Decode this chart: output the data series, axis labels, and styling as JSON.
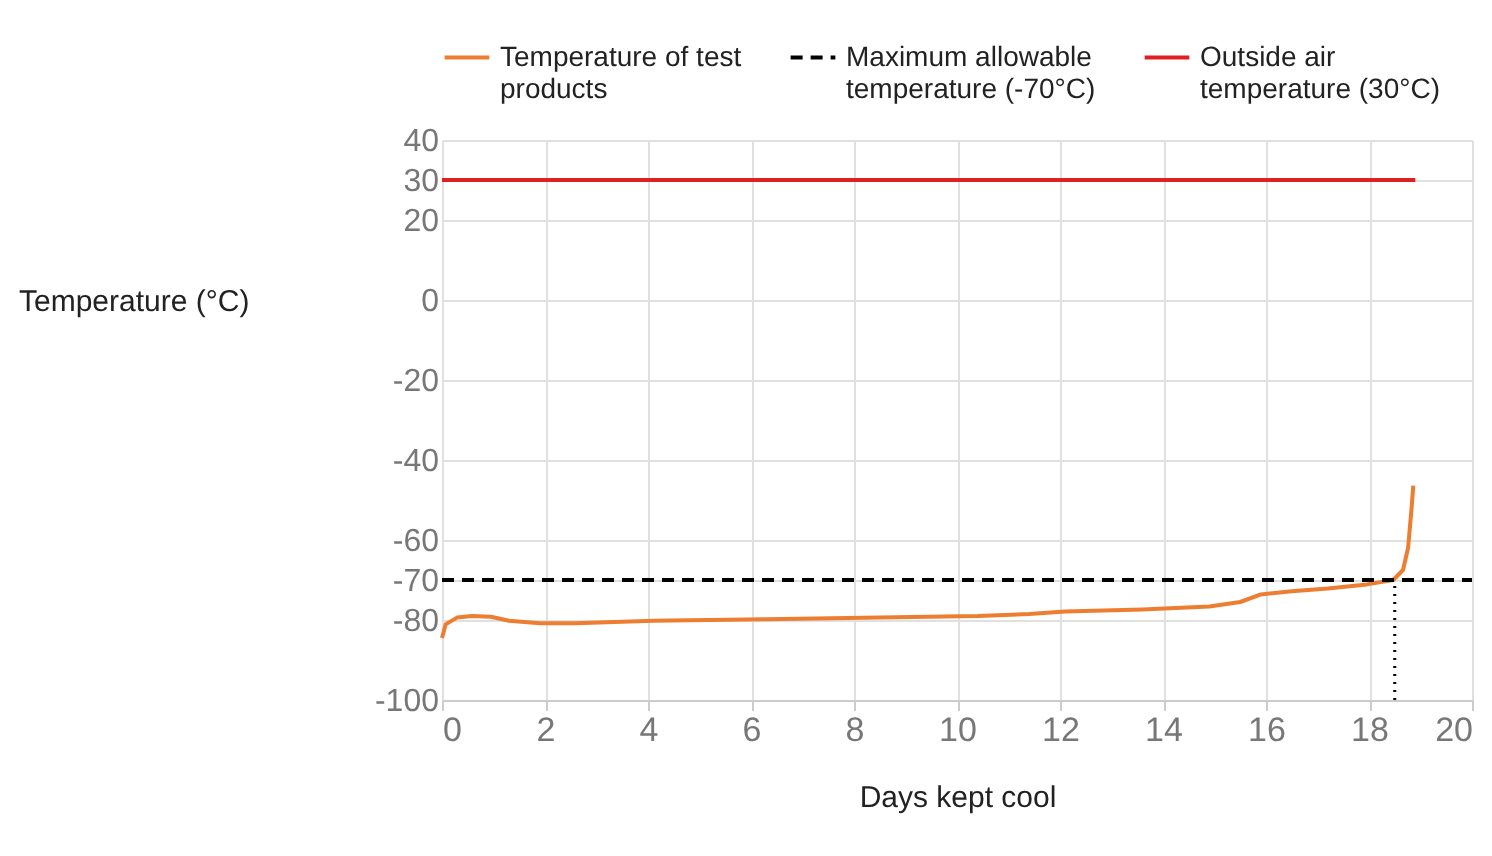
{
  "chart_data": {
    "type": "line",
    "xlabel": "Days kept cool",
    "ylabel": "Temperature (°C)",
    "xlim": [
      0,
      20
    ],
    "xticks": [
      0,
      2,
      4,
      6,
      8,
      10,
      12,
      14,
      16,
      18,
      20
    ],
    "ylim": [
      -100,
      40
    ],
    "yticks": [
      -100,
      -80,
      -70,
      -60,
      -40,
      -20,
      0,
      20,
      30,
      40
    ],
    "grid": true,
    "legend": "top",
    "marker": "none",
    "series": [
      {
        "name": "Temperature of test products",
        "color": "#ed7d31",
        "line_style": "solid",
        "x": [
          0,
          0.07,
          0.29,
          0.58,
          0.95,
          1.3,
          1.9,
          2.6,
          4.1,
          6.3,
          8.5,
          10.4,
          11.4,
          12.1,
          13.6,
          14.9,
          15.5,
          15.9,
          16.5,
          17.2,
          17.96,
          18.47,
          18.66,
          18.76,
          18.83,
          18.86
        ],
        "values": [
          -84.5,
          -81.1,
          -79.4,
          -79,
          -79.2,
          -80.2,
          -80.8,
          -80.8,
          -80.2,
          -79.8,
          -79.4,
          -79,
          -78.5,
          -77.9,
          -77.4,
          -76.6,
          -75.5,
          -73.6,
          -72.8,
          -72.1,
          -71.1,
          -70,
          -67.5,
          -61.9,
          -51.5,
          -46.4
        ]
      },
      {
        "name": "Maximum allowable temperature (-70°C)",
        "color": "#000000",
        "line_style": "dashed",
        "x": [
          0,
          20
        ],
        "values": [
          -70,
          -70
        ]
      },
      {
        "name": "Outside air temperature (30°C)",
        "color": "#e02020",
        "line_style": "solid",
        "x": [
          0,
          18.9
        ],
        "values": [
          30,
          30
        ]
      }
    ],
    "ref_lines": [
      {
        "axis": "x",
        "value": 18.5,
        "color": "#000000",
        "line_style": "dotted"
      }
    ]
  }
}
